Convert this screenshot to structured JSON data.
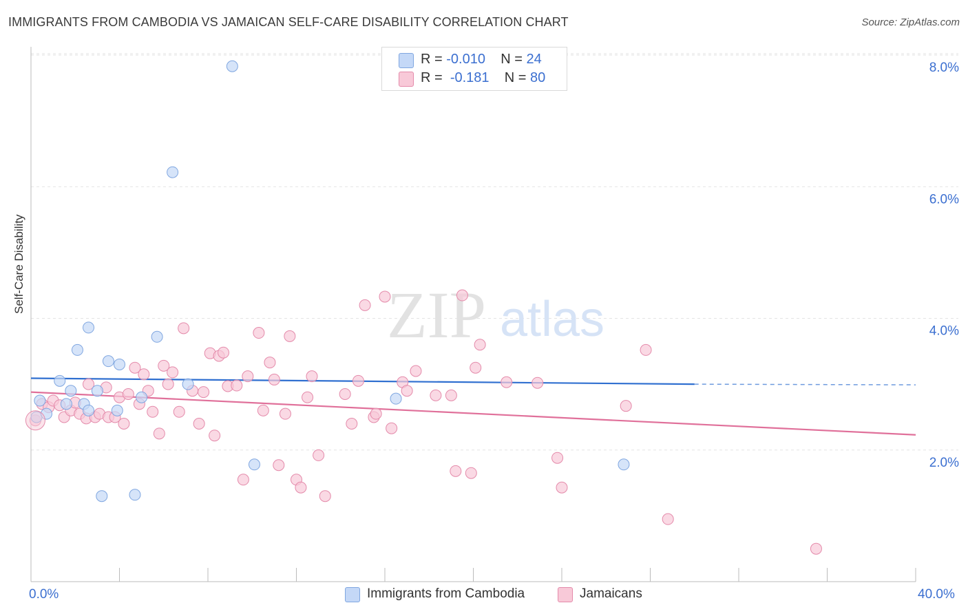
{
  "header": {
    "title": "IMMIGRANTS FROM CAMBODIA VS JAMAICAN SELF-CARE DISABILITY CORRELATION CHART",
    "source": "Source: ZipAtlas.com"
  },
  "watermark": {
    "zip": "ZIP",
    "atlas": "atlas"
  },
  "colors": {
    "blue_fill": "#c4d8f7",
    "blue_stroke": "#7fa6e0",
    "blue_line": "#2f6fd0",
    "pink_fill": "#f8c9d8",
    "pink_stroke": "#e48aaa",
    "pink_line": "#e0709a",
    "axis_text": "#3b6fd0",
    "grid": "#e3e3e3"
  },
  "legend_top": [
    {
      "r_label": "R = ",
      "r_value": "-0.010",
      "n_label": "N = ",
      "n_value": "24",
      "swatch": "blue"
    },
    {
      "r_label": "R = ",
      "r_value": "-0.181",
      "n_label": "N = ",
      "n_value": "80",
      "swatch": "pink"
    }
  ],
  "legend_bottom": [
    {
      "label": "Immigrants from Cambodia",
      "swatch": "blue"
    },
    {
      "label": "Jamaicans",
      "swatch": "pink"
    }
  ],
  "chart_data": {
    "type": "scatter",
    "title": "IMMIGRANTS FROM CAMBODIA VS JAMAICAN SELF-CARE DISABILITY CORRELATION CHART",
    "xlabel": "",
    "ylabel": "Self-Care Disability",
    "xlim": [
      0,
      40
    ],
    "ylim": [
      0,
      8.3
    ],
    "x_tick_labels": [
      "0.0%",
      "40.0%"
    ],
    "y_ticks": [
      2,
      4,
      6,
      8
    ],
    "y_tick_labels": [
      "2.0%",
      "4.0%",
      "6.0%",
      "8.0%"
    ],
    "grid": true,
    "legend_position": "top-center",
    "series": [
      {
        "name": "Immigrants from Cambodia",
        "color": "blue",
        "trend": {
          "x": [
            0,
            30
          ],
          "y": [
            3.09,
            3.0
          ],
          "dashed_to": 40,
          "dashed_y": 2.99
        },
        "points": [
          [
            0.25,
            2.5
          ],
          [
            0.4,
            2.75
          ],
          [
            0.7,
            2.55
          ],
          [
            1.3,
            3.05
          ],
          [
            1.8,
            2.9
          ],
          [
            2.4,
            2.7
          ],
          [
            2.6,
            2.6
          ],
          [
            2.1,
            3.52
          ],
          [
            2.6,
            3.86
          ],
          [
            3.0,
            2.9
          ],
          [
            3.5,
            3.35
          ],
          [
            4.0,
            3.3
          ],
          [
            3.9,
            2.6
          ],
          [
            5.0,
            2.8
          ],
          [
            5.7,
            3.72
          ],
          [
            3.2,
            1.3
          ],
          [
            4.7,
            1.32
          ],
          [
            6.4,
            6.22
          ],
          [
            7.1,
            3.0
          ],
          [
            9.1,
            7.83
          ],
          [
            10.1,
            1.78
          ],
          [
            16.5,
            2.78
          ],
          [
            26.8,
            1.78
          ],
          [
            1.6,
            2.7
          ]
        ]
      },
      {
        "name": "Jamaicans",
        "color": "pink",
        "trend": {
          "x": [
            0,
            40
          ],
          "y": [
            2.88,
            2.23
          ]
        },
        "points": [
          [
            0.2,
            2.45
          ],
          [
            0.5,
            2.7
          ],
          [
            0.8,
            2.65
          ],
          [
            1.0,
            2.75
          ],
          [
            1.3,
            2.68
          ],
          [
            1.5,
            2.5
          ],
          [
            1.8,
            2.6
          ],
          [
            2.0,
            2.72
          ],
          [
            2.2,
            2.55
          ],
          [
            2.5,
            2.48
          ],
          [
            2.6,
            3.0
          ],
          [
            2.9,
            2.5
          ],
          [
            3.1,
            2.55
          ],
          [
            3.4,
            2.95
          ],
          [
            3.5,
            2.5
          ],
          [
            3.8,
            2.5
          ],
          [
            4.0,
            2.8
          ],
          [
            4.2,
            2.4
          ],
          [
            4.4,
            2.85
          ],
          [
            4.7,
            3.25
          ],
          [
            4.9,
            2.7
          ],
          [
            5.1,
            3.15
          ],
          [
            5.3,
            2.9
          ],
          [
            5.5,
            2.58
          ],
          [
            5.8,
            2.25
          ],
          [
            6.0,
            3.28
          ],
          [
            6.2,
            3.0
          ],
          [
            6.4,
            3.18
          ],
          [
            6.7,
            2.58
          ],
          [
            6.9,
            3.85
          ],
          [
            7.3,
            2.9
          ],
          [
            7.6,
            2.4
          ],
          [
            7.8,
            2.88
          ],
          [
            8.1,
            3.47
          ],
          [
            8.3,
            2.22
          ],
          [
            8.5,
            3.43
          ],
          [
            8.7,
            3.48
          ],
          [
            8.9,
            2.97
          ],
          [
            9.3,
            2.98
          ],
          [
            9.6,
            1.55
          ],
          [
            9.8,
            3.12
          ],
          [
            10.3,
            3.78
          ],
          [
            10.5,
            2.6
          ],
          [
            10.8,
            3.33
          ],
          [
            11.0,
            3.07
          ],
          [
            11.2,
            1.77
          ],
          [
            11.5,
            2.55
          ],
          [
            11.7,
            3.73
          ],
          [
            12.0,
            1.55
          ],
          [
            12.2,
            1.43
          ],
          [
            12.5,
            2.8
          ],
          [
            12.7,
            3.12
          ],
          [
            13.0,
            1.92
          ],
          [
            13.3,
            1.3
          ],
          [
            14.2,
            2.85
          ],
          [
            14.5,
            2.4
          ],
          [
            14.8,
            3.05
          ],
          [
            15.1,
            4.2
          ],
          [
            15.5,
            2.5
          ],
          [
            16.0,
            4.33
          ],
          [
            16.3,
            2.33
          ],
          [
            16.8,
            3.03
          ],
          [
            17.0,
            2.9
          ],
          [
            17.4,
            3.2
          ],
          [
            18.3,
            2.83
          ],
          [
            19.0,
            2.83
          ],
          [
            19.2,
            1.68
          ],
          [
            19.5,
            4.35
          ],
          [
            19.9,
            1.65
          ],
          [
            20.3,
            3.6
          ],
          [
            20.1,
            3.25
          ],
          [
            21.5,
            3.03
          ],
          [
            22.9,
            3.02
          ],
          [
            23.8,
            1.88
          ],
          [
            24.0,
            1.43
          ],
          [
            26.9,
            2.67
          ],
          [
            27.8,
            3.52
          ],
          [
            28.8,
            0.95
          ],
          [
            35.5,
            0.5
          ],
          [
            15.6,
            2.55
          ]
        ]
      }
    ]
  }
}
